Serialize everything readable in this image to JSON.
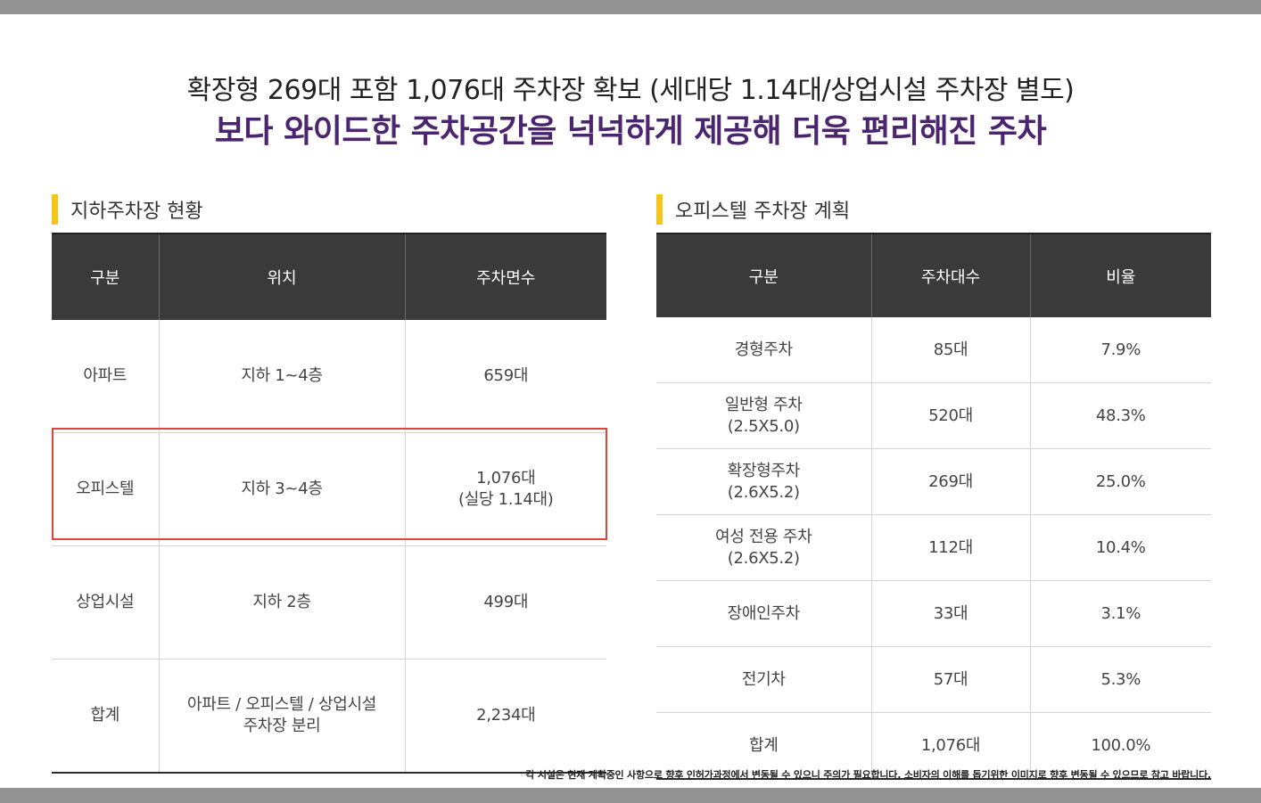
{
  "headline": "확장형 269대 포함 1,076대 주차장 확보 (세대당 1.14대/상업시설 주차장 별도)",
  "subheadline": "보다 와이드한 주차공간을 넉넉하게 제공해 더욱 편리해진 주차",
  "left_section": {
    "title": "지하주차장 현황",
    "headers": [
      "구분",
      "위치",
      "주차면수"
    ],
    "rows": [
      {
        "category": "아파트",
        "location": "지하 1~4층",
        "spaces": "659대",
        "spaces_note": ""
      },
      {
        "category": "오피스텔",
        "location": "지하 3~4층",
        "spaces": "1,076대",
        "spaces_note": "(실당 1.14대)"
      },
      {
        "category": "상업시설",
        "location": "지하 2층",
        "spaces": "499대",
        "spaces_note": ""
      },
      {
        "category": "합계",
        "location": "아파트 / 오피스텔 / 상업시설",
        "location_note": "주차장 분리",
        "spaces": "2,234대",
        "spaces_note": ""
      }
    ]
  },
  "right_section": {
    "title": "오피스텔 주차장 계획",
    "headers": [
      "구분",
      "주차대수",
      "비율"
    ],
    "rows": [
      {
        "category": "경형주차",
        "category_note": "",
        "count": "85대",
        "ratio": "7.9%"
      },
      {
        "category": "일반형 주차",
        "category_note": "(2.5X5.0)",
        "count": "520대",
        "ratio": "48.3%"
      },
      {
        "category": "확장형주차",
        "category_note": "(2.6X5.2)",
        "count": "269대",
        "ratio": "25.0%"
      },
      {
        "category": "여성 전용 주차",
        "category_note": "(2.6X5.2)",
        "count": "112대",
        "ratio": "10.4%"
      },
      {
        "category": "장애인주차",
        "category_note": "",
        "count": "33대",
        "ratio": "3.1%"
      },
      {
        "category": "전기차",
        "category_note": "",
        "count": "57대",
        "ratio": "5.3%"
      },
      {
        "category": "합계",
        "category_note": "",
        "count": "1,076대",
        "ratio": "100.0%"
      }
    ]
  },
  "footnote": "각 시설은 현재 계획중인 사항으로 향후 인허가과정에서 변동될 수 있으니 주의가 필요합니다. 소비자의 이해를 돕기위한 이미지로 향후 변동될 수 있으므로 참고 바랍니다.",
  "colors": {
    "accent_purple": "#4b2570",
    "marker_yellow": "#f5c51b",
    "highlight_red": "#e0443a",
    "header_dark": "#3a3a3a"
  }
}
